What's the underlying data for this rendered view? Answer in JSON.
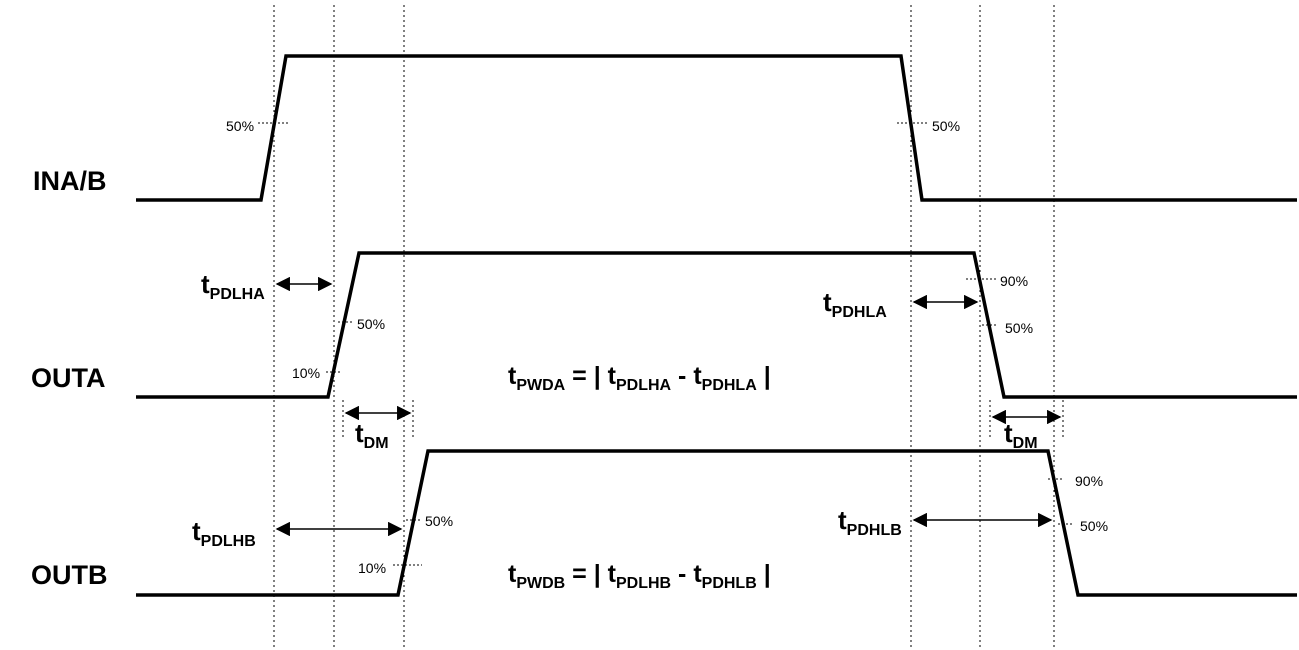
{
  "signals": {
    "input": "INA/B",
    "outa": "OUTA",
    "outb": "OUTB"
  },
  "percent": {
    "p50": "50%",
    "p10": "10%",
    "p90": "90%"
  },
  "timing": {
    "t": "t",
    "pdlha": "PDLHA",
    "pdhla": "PDHLA",
    "pdlhb": "PDLHB",
    "pdhlb": "PDHLB",
    "dm": "DM",
    "pwda": "PWDA",
    "pwdb": "PWDB"
  },
  "equations": {
    "pwda": {
      "lhs_t": "t",
      "lhs_sub": "PWDA",
      "eq_open": " = | ",
      "a_t": "t",
      "a_sub": "PDLHA",
      "minus": " - ",
      "b_t": "t",
      "b_sub": "PDHLA",
      "close": " |"
    },
    "pwdb": {
      "lhs_t": "t",
      "lhs_sub": "PWDB",
      "eq_open": " = | ",
      "a_t": "t",
      "a_sub": "PDLHB",
      "minus": " - ",
      "b_t": "t",
      "b_sub": "PDHLB",
      "close": " |"
    }
  },
  "colors": {
    "line": "#000000",
    "background": "#ffffff"
  }
}
